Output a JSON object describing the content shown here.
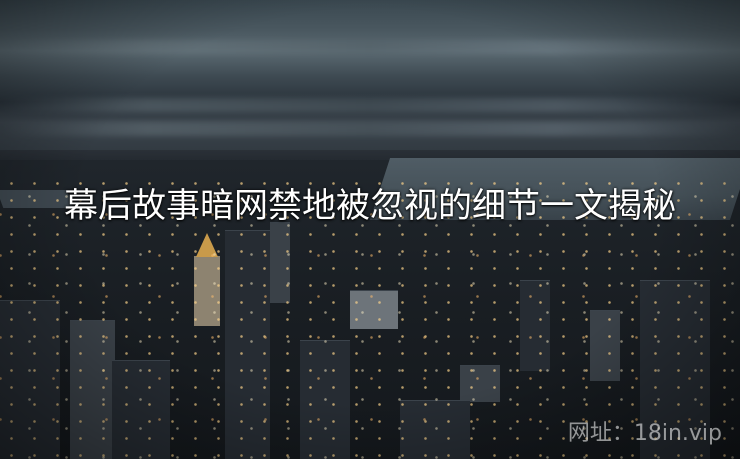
{
  "image": {
    "headline": "幕后故事暗网禁地被忽视的细节一文揭秘",
    "watermark": "网址：18in.vip"
  }
}
